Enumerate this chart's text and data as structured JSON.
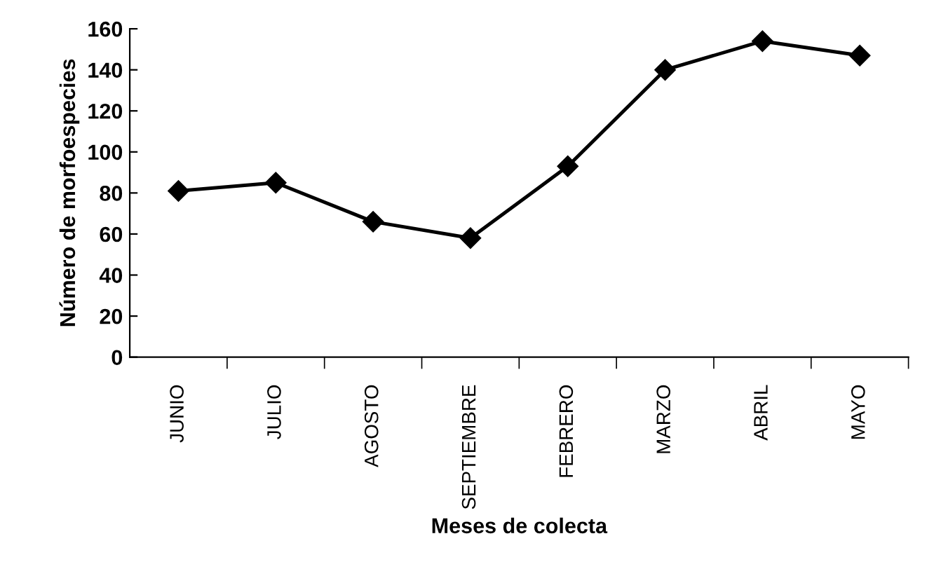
{
  "chart_data": {
    "type": "line",
    "xlabel": "Meses de colecta",
    "ylabel": "Número de morfoespecies",
    "categories": [
      "JUNIO",
      "JULIO",
      "AGOSTO",
      "SEPTIEMBRE",
      "FEBRERO",
      "MARZO",
      "ABRIL",
      "MAYO"
    ],
    "series": [
      {
        "color": "#000000",
        "values": [
          81,
          85,
          66,
          58,
          93,
          140,
          154,
          147
        ]
      }
    ],
    "ylim": [
      0,
      160
    ],
    "yticks": [
      0,
      20,
      40,
      60,
      80,
      100,
      120,
      140,
      160
    ],
    "marker": "diamond",
    "line_style": "solid",
    "grid": false,
    "legend": false
  }
}
